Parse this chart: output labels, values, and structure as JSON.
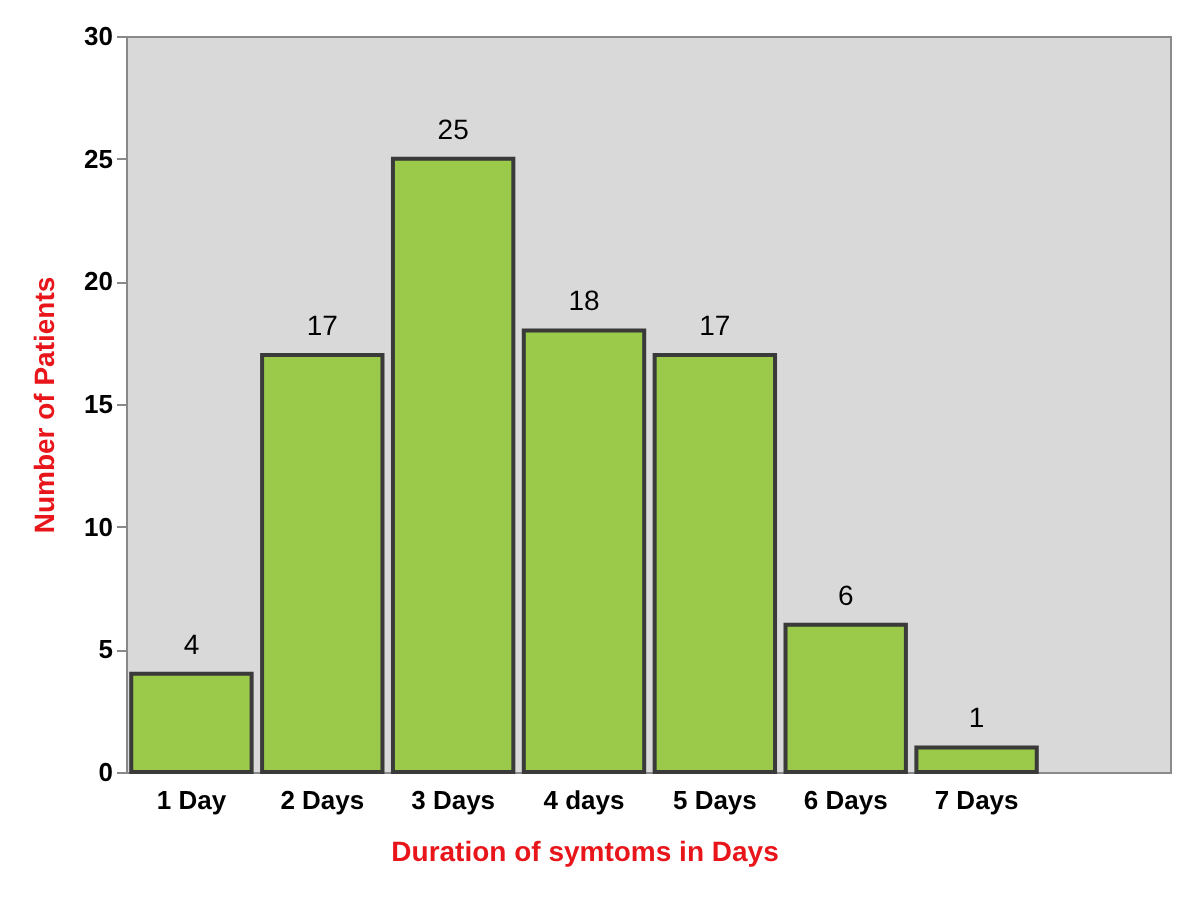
{
  "chart_data": {
    "type": "bar",
    "xlabel": "Duration of symtoms in Days",
    "ylabel": "Number of Patients",
    "categories": [
      "1 Day",
      "2 Days",
      "3 Days",
      "4 days",
      "5 Days",
      "6 Days",
      "7 Days"
    ],
    "values": [
      4,
      17,
      25,
      18,
      17,
      6,
      1
    ],
    "color": "#9bc94a",
    "ylim": [
      0,
      30
    ],
    "yticks": [
      0,
      5,
      10,
      15,
      20,
      25,
      30
    ],
    "grid": false,
    "data_labels": true
  }
}
